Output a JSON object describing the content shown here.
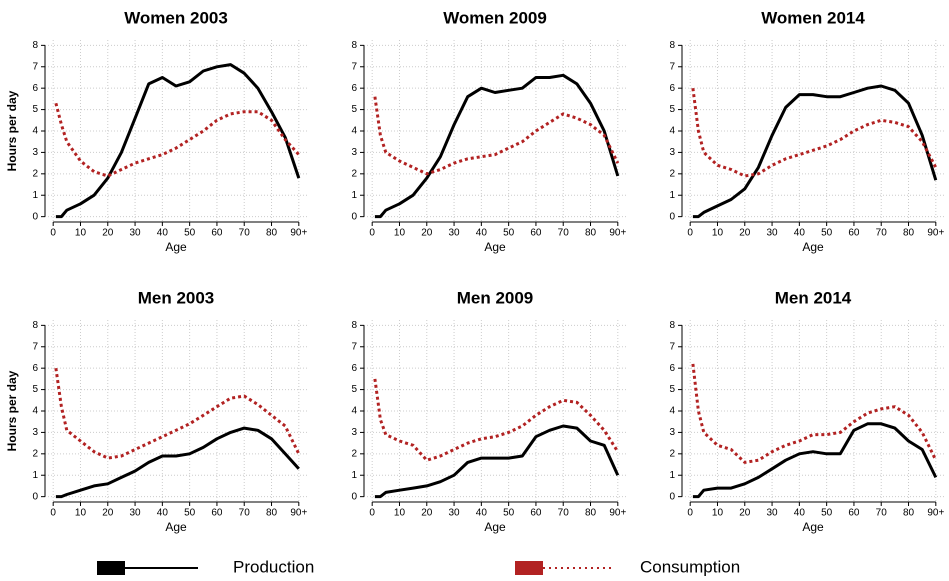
{
  "chart_data": [
    {
      "type": "line",
      "title": "Women  2003",
      "xlabel": "Age",
      "ylabel": "Hours per day",
      "grid": true,
      "xlim": [
        -3,
        93
      ],
      "ylim": [
        -0.25,
        8.25
      ],
      "xticks": [
        0,
        10,
        20,
        30,
        40,
        50,
        60,
        70,
        80,
        {
          "value": 90,
          "label": "90+"
        }
      ],
      "yticks": [
        0,
        1,
        2,
        3,
        4,
        5,
        6,
        7,
        8
      ],
      "x": [
        1,
        3,
        5,
        10,
        15,
        20,
        25,
        30,
        35,
        40,
        45,
        50,
        55,
        60,
        65,
        70,
        75,
        80,
        85,
        90
      ],
      "series": [
        {
          "name": "Production",
          "color": "#000000",
          "line_style": "solid",
          "values": [
            0,
            0,
            0.3,
            0.6,
            1.0,
            1.8,
            3.0,
            4.6,
            6.2,
            6.5,
            6.1,
            6.3,
            6.8,
            7.0,
            7.1,
            6.7,
            6.0,
            4.9,
            3.7,
            1.8
          ]
        },
        {
          "name": "Consumption",
          "color": "#b22222",
          "line_style": "dotted",
          "values": [
            5.3,
            4.3,
            3.5,
            2.6,
            2.1,
            1.9,
            2.2,
            2.5,
            2.7,
            2.9,
            3.2,
            3.6,
            4.0,
            4.5,
            4.8,
            4.9,
            4.9,
            4.5,
            3.6,
            2.9
          ]
        }
      ]
    },
    {
      "type": "line",
      "title": "Women  2009",
      "xlabel": "Age",
      "grid": true,
      "xlim": [
        -3,
        93
      ],
      "ylim": [
        -0.25,
        8.25
      ],
      "xticks": [
        0,
        10,
        20,
        30,
        40,
        50,
        60,
        70,
        80,
        {
          "value": 90,
          "label": "90+"
        }
      ],
      "yticks": [
        0,
        1,
        2,
        3,
        4,
        5,
        6,
        7,
        8
      ],
      "x": [
        1,
        3,
        5,
        10,
        15,
        20,
        25,
        30,
        35,
        40,
        45,
        50,
        55,
        60,
        65,
        70,
        75,
        80,
        85,
        90
      ],
      "series": [
        {
          "name": "Production",
          "color": "#000000",
          "line_style": "solid",
          "values": [
            0,
            0,
            0.3,
            0.6,
            1.0,
            1.8,
            2.8,
            4.3,
            5.6,
            6.0,
            5.8,
            5.9,
            6.0,
            6.5,
            6.5,
            6.6,
            6.2,
            5.3,
            4.0,
            1.9
          ]
        },
        {
          "name": "Consumption",
          "color": "#b22222",
          "line_style": "dotted",
          "values": [
            5.6,
            3.8,
            3.0,
            2.6,
            2.3,
            2.0,
            2.2,
            2.5,
            2.7,
            2.8,
            2.9,
            3.2,
            3.5,
            4.0,
            4.4,
            4.8,
            4.6,
            4.3,
            3.8,
            2.5
          ]
        }
      ]
    },
    {
      "type": "line",
      "title": "Women  2014",
      "xlabel": "Age",
      "grid": true,
      "xlim": [
        -3,
        93
      ],
      "ylim": [
        -0.25,
        8.25
      ],
      "xticks": [
        0,
        10,
        20,
        30,
        40,
        50,
        60,
        70,
        80,
        {
          "value": 90,
          "label": "90+"
        }
      ],
      "yticks": [
        0,
        1,
        2,
        3,
        4,
        5,
        6,
        7,
        8
      ],
      "x": [
        1,
        3,
        5,
        10,
        15,
        20,
        25,
        30,
        35,
        40,
        45,
        50,
        55,
        60,
        65,
        70,
        75,
        80,
        85,
        90
      ],
      "series": [
        {
          "name": "Production",
          "color": "#000000",
          "line_style": "solid",
          "values": [
            0,
            0,
            0.2,
            0.5,
            0.8,
            1.3,
            2.3,
            3.8,
            5.1,
            5.7,
            5.7,
            5.6,
            5.6,
            5.8,
            6.0,
            6.1,
            5.9,
            5.3,
            3.8,
            1.7
          ]
        },
        {
          "name": "Consumption",
          "color": "#b22222",
          "line_style": "dotted",
          "values": [
            6.0,
            4.0,
            3.0,
            2.4,
            2.2,
            1.9,
            2.0,
            2.4,
            2.7,
            2.9,
            3.1,
            3.3,
            3.6,
            4.0,
            4.3,
            4.5,
            4.4,
            4.2,
            3.5,
            2.3
          ]
        }
      ]
    },
    {
      "type": "line",
      "title": "Men 2003",
      "xlabel": "Age",
      "ylabel": "Hours per day",
      "grid": true,
      "xlim": [
        -3,
        93
      ],
      "ylim": [
        -0.25,
        8.25
      ],
      "xticks": [
        0,
        10,
        20,
        30,
        40,
        50,
        60,
        70,
        80,
        {
          "value": 90,
          "label": "90+"
        }
      ],
      "yticks": [
        0,
        1,
        2,
        3,
        4,
        5,
        6,
        7,
        8
      ],
      "x": [
        1,
        3,
        5,
        10,
        15,
        20,
        25,
        30,
        35,
        40,
        45,
        50,
        55,
        60,
        65,
        70,
        75,
        80,
        85,
        90
      ],
      "series": [
        {
          "name": "Production",
          "color": "#000000",
          "line_style": "solid",
          "values": [
            0,
            0,
            0.1,
            0.3,
            0.5,
            0.6,
            0.9,
            1.2,
            1.6,
            1.9,
            1.9,
            2.0,
            2.3,
            2.7,
            3.0,
            3.2,
            3.1,
            2.7,
            2.0,
            1.3
          ]
        },
        {
          "name": "Consumption",
          "color": "#b22222",
          "line_style": "dotted",
          "values": [
            6.0,
            4.2,
            3.1,
            2.6,
            2.1,
            1.8,
            1.9,
            2.2,
            2.5,
            2.8,
            3.1,
            3.4,
            3.8,
            4.2,
            4.6,
            4.7,
            4.3,
            3.8,
            3.3,
            2.0
          ]
        }
      ]
    },
    {
      "type": "line",
      "title": "Men 2009",
      "xlabel": "Age",
      "grid": true,
      "xlim": [
        -3,
        93
      ],
      "ylim": [
        -0.25,
        8.25
      ],
      "xticks": [
        0,
        10,
        20,
        30,
        40,
        50,
        60,
        70,
        80,
        {
          "value": 90,
          "label": "90+"
        }
      ],
      "yticks": [
        0,
        1,
        2,
        3,
        4,
        5,
        6,
        7,
        8
      ],
      "x": [
        1,
        3,
        5,
        10,
        15,
        20,
        25,
        30,
        35,
        40,
        45,
        50,
        55,
        60,
        65,
        70,
        75,
        80,
        85,
        90
      ],
      "series": [
        {
          "name": "Production",
          "color": "#000000",
          "line_style": "solid",
          "values": [
            0,
            0,
            0.2,
            0.3,
            0.4,
            0.5,
            0.7,
            1.0,
            1.6,
            1.8,
            1.8,
            1.8,
            1.9,
            2.8,
            3.1,
            3.3,
            3.2,
            2.6,
            2.4,
            1.0
          ]
        },
        {
          "name": "Consumption",
          "color": "#b22222",
          "line_style": "dotted",
          "values": [
            5.5,
            3.6,
            2.9,
            2.6,
            2.4,
            1.7,
            1.9,
            2.2,
            2.5,
            2.7,
            2.8,
            3.0,
            3.3,
            3.8,
            4.2,
            4.5,
            4.4,
            3.8,
            3.1,
            2.1
          ]
        }
      ]
    },
    {
      "type": "line",
      "title": "Men 2014",
      "xlabel": "Age",
      "grid": true,
      "xlim": [
        -3,
        93
      ],
      "ylim": [
        -0.25,
        8.25
      ],
      "xticks": [
        0,
        10,
        20,
        30,
        40,
        50,
        60,
        70,
        80,
        {
          "value": 90,
          "label": "90+"
        }
      ],
      "yticks": [
        0,
        1,
        2,
        3,
        4,
        5,
        6,
        7,
        8
      ],
      "x": [
        1,
        3,
        5,
        10,
        15,
        20,
        25,
        30,
        35,
        40,
        45,
        50,
        55,
        60,
        65,
        70,
        75,
        80,
        85,
        90
      ],
      "series": [
        {
          "name": "Production",
          "color": "#000000",
          "line_style": "solid",
          "values": [
            0,
            0,
            0.3,
            0.4,
            0.4,
            0.6,
            0.9,
            1.3,
            1.7,
            2.0,
            2.1,
            2.0,
            2.0,
            3.1,
            3.4,
            3.4,
            3.2,
            2.6,
            2.2,
            0.9
          ]
        },
        {
          "name": "Consumption",
          "color": "#b22222",
          "line_style": "dotted",
          "values": [
            6.2,
            4.0,
            3.0,
            2.4,
            2.2,
            1.6,
            1.7,
            2.1,
            2.4,
            2.6,
            2.9,
            2.9,
            3.0,
            3.5,
            3.9,
            4.1,
            4.2,
            3.8,
            3.0,
            1.7
          ]
        }
      ]
    }
  ]
}
